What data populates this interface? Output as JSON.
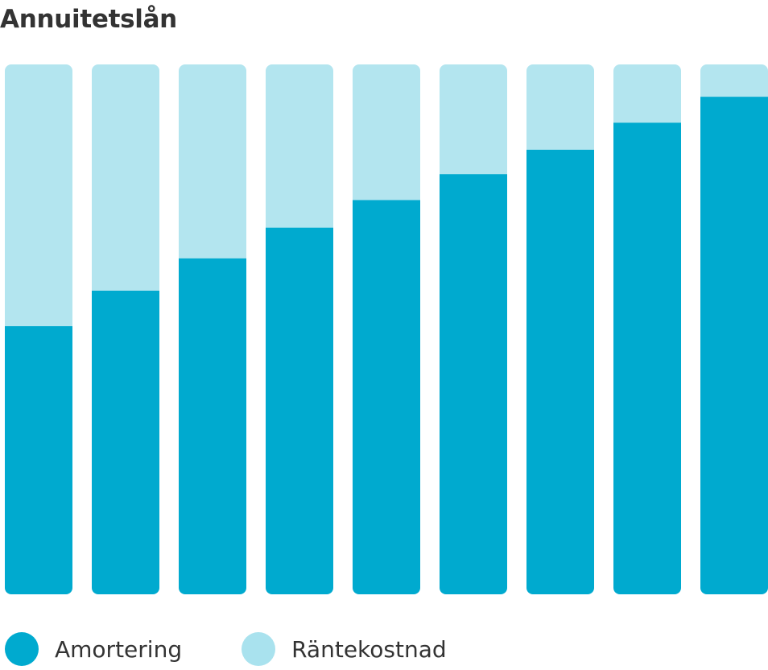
{
  "title": "Annuitetslån",
  "chart_data": {
    "type": "bar",
    "stacked": true,
    "normalized": true,
    "categories": [
      "",
      "",
      "",
      "",
      "",
      "",
      "",
      "",
      ""
    ],
    "series": [
      {
        "name": "Amortering",
        "color": "#00aacf",
        "values": [
          0.506,
          0.573,
          0.634,
          0.692,
          0.744,
          0.793,
          0.839,
          0.89,
          0.939
        ]
      },
      {
        "name": "Räntekostnad",
        "color": "#b3e5ef",
        "values": [
          0.494,
          0.427,
          0.366,
          0.308,
          0.256,
          0.207,
          0.161,
          0.11,
          0.061
        ]
      }
    ],
    "ylim": [
      0,
      1
    ],
    "grid": false,
    "legend": "bottom-left"
  }
}
